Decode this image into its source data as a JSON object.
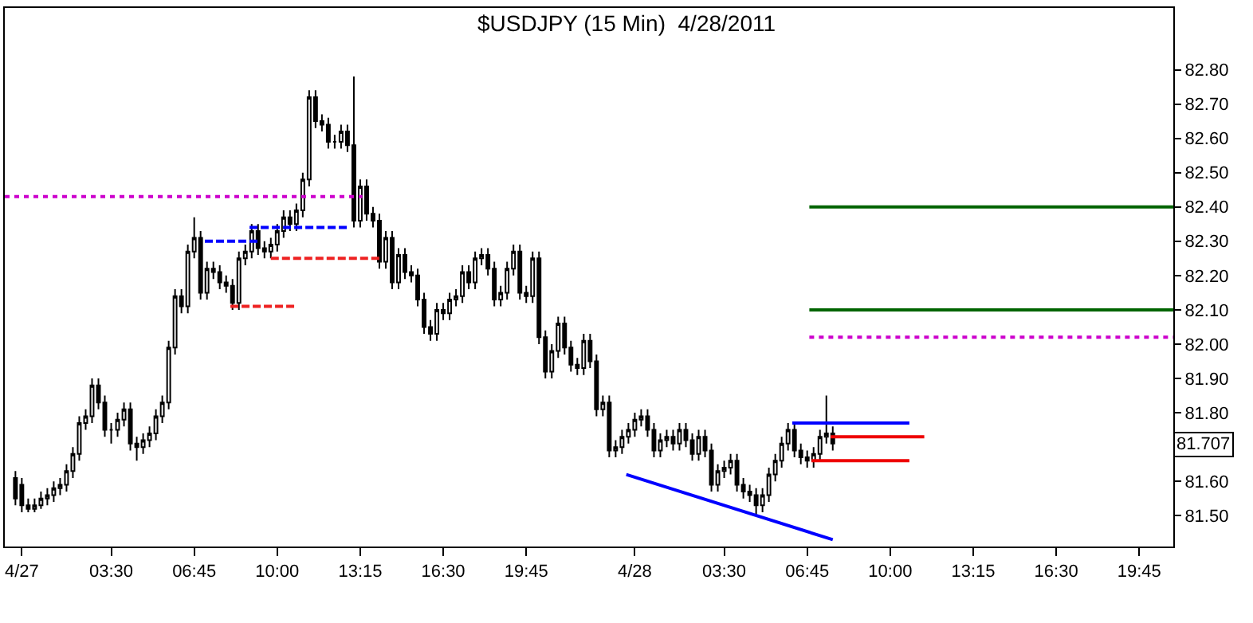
{
  "chart_data": {
    "type": "candlestick",
    "title": "$USDJPY (15 Min)  4/28/2011",
    "x": [
      "2011-04-26T23:45",
      "2011-04-27T00:00",
      "2011-04-27T00:15",
      "2011-04-27T00:30",
      "2011-04-27T00:45",
      "2011-04-27T01:00",
      "2011-04-27T01:15",
      "2011-04-27T01:30",
      "2011-04-27T01:45",
      "2011-04-27T02:00",
      "2011-04-27T02:15",
      "2011-04-27T02:30",
      "2011-04-27T02:45",
      "2011-04-27T03:00",
      "2011-04-27T03:15",
      "2011-04-27T03:30",
      "2011-04-27T03:45",
      "2011-04-27T04:00",
      "2011-04-27T04:15",
      "2011-04-27T04:30",
      "2011-04-27T04:45",
      "2011-04-27T05:00",
      "2011-04-27T05:15",
      "2011-04-27T05:30",
      "2011-04-27T05:45",
      "2011-04-27T06:00",
      "2011-04-27T06:15",
      "2011-04-27T06:30",
      "2011-04-27T06:45",
      "2011-04-27T07:00",
      "2011-04-27T07:15",
      "2011-04-27T07:30",
      "2011-04-27T07:45",
      "2011-04-27T08:00",
      "2011-04-27T08:15",
      "2011-04-27T08:30",
      "2011-04-27T08:45",
      "2011-04-27T09:00",
      "2011-04-27T09:15",
      "2011-04-27T09:30",
      "2011-04-27T09:45",
      "2011-04-27T10:00",
      "2011-04-27T10:15",
      "2011-04-27T10:30",
      "2011-04-27T10:45",
      "2011-04-27T11:00",
      "2011-04-27T11:15",
      "2011-04-27T11:30",
      "2011-04-27T11:45",
      "2011-04-27T12:00",
      "2011-04-27T12:15",
      "2011-04-27T12:30",
      "2011-04-27T12:45",
      "2011-04-27T13:00",
      "2011-04-27T13:15",
      "2011-04-27T13:30",
      "2011-04-27T13:45",
      "2011-04-27T14:00",
      "2011-04-27T14:15",
      "2011-04-27T14:30",
      "2011-04-27T14:45",
      "2011-04-27T15:00",
      "2011-04-27T15:15",
      "2011-04-27T15:30",
      "2011-04-27T15:45",
      "2011-04-27T16:00",
      "2011-04-27T16:15",
      "2011-04-27T16:30",
      "2011-04-27T16:45",
      "2011-04-27T17:00",
      "2011-04-27T17:15",
      "2011-04-27T17:30",
      "2011-04-27T17:45",
      "2011-04-27T18:00",
      "2011-04-27T18:15",
      "2011-04-27T18:30",
      "2011-04-27T18:45",
      "2011-04-27T19:00",
      "2011-04-27T19:15",
      "2011-04-27T19:30",
      "2011-04-27T19:45",
      "2011-04-27T20:00",
      "2011-04-27T20:15",
      "2011-04-27T20:30",
      "2011-04-27T20:45",
      "2011-04-27T21:00",
      "2011-04-27T21:15",
      "2011-04-27T21:30",
      "2011-04-27T21:45",
      "2011-04-27T22:00",
      "2011-04-27T22:15",
      "2011-04-27T22:30",
      "2011-04-27T22:45",
      "2011-04-27T23:00",
      "2011-04-27T23:15",
      "2011-04-27T23:30",
      "2011-04-27T23:45",
      "2011-04-28T00:00",
      "2011-04-28T00:15",
      "2011-04-28T00:30",
      "2011-04-28T00:45",
      "2011-04-28T01:00",
      "2011-04-28T01:15",
      "2011-04-28T01:30",
      "2011-04-28T01:45",
      "2011-04-28T02:00",
      "2011-04-28T02:15",
      "2011-04-28T02:30",
      "2011-04-28T02:45",
      "2011-04-28T03:00",
      "2011-04-28T03:15",
      "2011-04-28T03:30",
      "2011-04-28T03:45",
      "2011-04-28T04:00",
      "2011-04-28T04:15",
      "2011-04-28T04:30",
      "2011-04-28T04:45",
      "2011-04-28T05:00",
      "2011-04-28T05:15",
      "2011-04-28T05:30",
      "2011-04-28T05:45",
      "2011-04-28T06:00",
      "2011-04-28T06:15",
      "2011-04-28T06:30",
      "2011-04-28T06:45",
      "2011-04-28T07:00",
      "2011-04-28T07:15",
      "2011-04-28T07:30",
      "2011-04-28T07:45"
    ],
    "ohlc": [
      [
        81.61,
        81.63,
        81.53,
        81.55
      ],
      [
        81.59,
        81.61,
        81.51,
        81.53
      ],
      [
        81.53,
        81.55,
        81.51,
        81.52
      ],
      [
        81.52,
        81.55,
        81.51,
        81.53
      ],
      [
        81.53,
        81.57,
        81.52,
        81.55
      ],
      [
        81.55,
        81.58,
        81.53,
        81.56
      ],
      [
        81.56,
        81.6,
        81.54,
        81.58
      ],
      [
        81.58,
        81.61,
        81.56,
        81.59
      ],
      [
        81.59,
        81.65,
        81.57,
        81.63
      ],
      [
        81.63,
        81.7,
        81.61,
        81.68
      ],
      [
        81.68,
        81.79,
        81.66,
        81.77
      ],
      [
        81.77,
        81.81,
        81.75,
        81.79
      ],
      [
        81.79,
        81.9,
        81.77,
        81.88
      ],
      [
        81.88,
        81.9,
        81.81,
        81.83
      ],
      [
        81.83,
        81.85,
        81.73,
        81.75
      ],
      [
        81.75,
        81.77,
        81.71,
        81.75
      ],
      [
        81.75,
        81.8,
        81.73,
        81.78
      ],
      [
        81.78,
        81.83,
        81.76,
        81.81
      ],
      [
        81.81,
        81.83,
        81.69,
        81.71
      ],
      [
        81.71,
        81.73,
        81.66,
        81.7
      ],
      [
        81.7,
        81.74,
        81.68,
        81.72
      ],
      [
        81.72,
        81.76,
        81.7,
        81.74
      ],
      [
        81.74,
        81.81,
        81.72,
        81.79
      ],
      [
        81.79,
        81.85,
        81.77,
        81.83
      ],
      [
        81.83,
        82.01,
        81.81,
        81.99
      ],
      [
        81.99,
        82.16,
        81.97,
        82.14
      ],
      [
        82.14,
        82.16,
        82.09,
        82.11
      ],
      [
        82.11,
        82.29,
        82.09,
        82.27
      ],
      [
        82.27,
        82.37,
        82.25,
        82.31
      ],
      [
        82.31,
        82.33,
        82.13,
        82.15
      ],
      [
        82.15,
        82.24,
        82.13,
        82.22
      ],
      [
        82.22,
        82.24,
        82.19,
        82.21
      ],
      [
        82.21,
        82.23,
        82.16,
        82.18
      ],
      [
        82.18,
        82.2,
        82.15,
        82.17
      ],
      [
        82.17,
        82.19,
        82.1,
        82.12
      ],
      [
        82.12,
        82.27,
        82.1,
        82.25
      ],
      [
        82.25,
        82.29,
        82.23,
        82.27
      ],
      [
        82.27,
        82.35,
        82.25,
        82.33
      ],
      [
        82.33,
        82.35,
        82.26,
        82.28
      ],
      [
        82.28,
        82.3,
        82.25,
        82.27
      ],
      [
        82.27,
        82.31,
        82.25,
        82.29
      ],
      [
        82.29,
        82.35,
        82.27,
        82.33
      ],
      [
        82.33,
        82.39,
        82.31,
        82.37
      ],
      [
        82.37,
        82.39,
        82.33,
        82.35
      ],
      [
        82.35,
        82.41,
        82.33,
        82.39
      ],
      [
        82.39,
        82.5,
        82.37,
        82.48
      ],
      [
        82.48,
        82.74,
        82.46,
        82.72
      ],
      [
        82.72,
        82.74,
        82.63,
        82.65
      ],
      [
        82.65,
        82.67,
        82.62,
        82.64
      ],
      [
        82.64,
        82.66,
        82.57,
        82.59
      ],
      [
        82.59,
        82.61,
        82.57,
        82.59
      ],
      [
        82.59,
        82.64,
        82.57,
        82.62
      ],
      [
        82.62,
        82.64,
        82.56,
        82.58
      ],
      [
        82.58,
        82.78,
        82.34,
        82.36
      ],
      [
        82.36,
        82.48,
        82.34,
        82.46
      ],
      [
        82.46,
        82.48,
        82.36,
        82.38
      ],
      [
        82.38,
        82.4,
        82.34,
        82.36
      ],
      [
        82.36,
        82.38,
        82.22,
        82.24
      ],
      [
        82.24,
        82.33,
        82.22,
        82.31
      ],
      [
        82.31,
        82.33,
        82.16,
        82.18
      ],
      [
        82.18,
        82.28,
        82.16,
        82.26
      ],
      [
        82.26,
        82.28,
        82.19,
        82.21
      ],
      [
        82.21,
        82.23,
        82.18,
        82.2
      ],
      [
        82.2,
        82.22,
        82.11,
        82.13
      ],
      [
        82.13,
        82.15,
        82.03,
        82.05
      ],
      [
        82.05,
        82.07,
        82.01,
        82.03
      ],
      [
        82.03,
        82.12,
        82.01,
        82.1
      ],
      [
        82.1,
        82.12,
        82.07,
        82.09
      ],
      [
        82.09,
        82.15,
        82.07,
        82.13
      ],
      [
        82.13,
        82.16,
        82.11,
        82.14
      ],
      [
        82.14,
        82.23,
        82.12,
        82.21
      ],
      [
        82.21,
        82.23,
        82.16,
        82.18
      ],
      [
        82.18,
        82.27,
        82.16,
        82.25
      ],
      [
        82.25,
        82.28,
        82.23,
        82.26
      ],
      [
        82.26,
        82.28,
        82.2,
        82.22
      ],
      [
        82.22,
        82.24,
        82.11,
        82.13
      ],
      [
        82.13,
        82.17,
        82.11,
        82.15
      ],
      [
        82.15,
        82.24,
        82.13,
        82.22
      ],
      [
        82.22,
        82.29,
        82.2,
        82.27
      ],
      [
        82.27,
        82.29,
        82.13,
        82.15
      ],
      [
        82.15,
        82.17,
        82.12,
        82.14
      ],
      [
        82.14,
        82.27,
        82.12,
        82.25
      ],
      [
        82.25,
        82.27,
        82.0,
        82.02
      ],
      [
        82.02,
        82.04,
        81.9,
        81.92
      ],
      [
        81.92,
        82.0,
        81.9,
        81.98
      ],
      [
        81.98,
        82.08,
        81.96,
        82.06
      ],
      [
        82.06,
        82.08,
        81.97,
        81.99
      ],
      [
        81.99,
        82.01,
        81.92,
        81.94
      ],
      [
        81.94,
        81.96,
        81.91,
        81.93
      ],
      [
        81.93,
        82.03,
        81.91,
        82.01
      ],
      [
        82.01,
        82.03,
        81.93,
        81.95
      ],
      [
        81.95,
        81.97,
        81.79,
        81.81
      ],
      [
        81.81,
        81.85,
        81.79,
        81.83
      ],
      [
        81.83,
        81.85,
        81.67,
        81.69
      ],
      [
        81.69,
        81.72,
        81.67,
        81.7
      ],
      [
        81.7,
        81.75,
        81.68,
        81.73
      ],
      [
        81.73,
        81.77,
        81.71,
        81.75
      ],
      [
        81.75,
        81.8,
        81.73,
        81.78
      ],
      [
        81.78,
        81.81,
        81.76,
        81.79
      ],
      [
        81.79,
        81.81,
        81.73,
        81.75
      ],
      [
        81.75,
        81.77,
        81.67,
        81.69
      ],
      [
        81.69,
        81.74,
        81.67,
        81.72
      ],
      [
        81.72,
        81.75,
        81.7,
        81.73
      ],
      [
        81.73,
        81.75,
        81.69,
        81.71
      ],
      [
        81.71,
        81.77,
        81.69,
        81.75
      ],
      [
        81.75,
        81.77,
        81.7,
        81.72
      ],
      [
        81.72,
        81.74,
        81.66,
        81.68
      ],
      [
        81.68,
        81.75,
        81.66,
        81.73
      ],
      [
        81.73,
        81.75,
        81.67,
        81.69
      ],
      [
        81.69,
        81.71,
        81.57,
        81.59
      ],
      [
        81.59,
        81.65,
        81.57,
        81.63
      ],
      [
        81.63,
        81.66,
        81.61,
        81.64
      ],
      [
        81.64,
        81.68,
        81.62,
        81.66
      ],
      [
        81.66,
        81.68,
        81.57,
        81.59
      ],
      [
        81.59,
        81.61,
        81.55,
        81.57
      ],
      [
        81.57,
        81.59,
        81.54,
        81.56
      ],
      [
        81.56,
        81.58,
        81.5,
        81.53
      ],
      [
        81.53,
        81.58,
        81.51,
        81.56
      ],
      [
        81.56,
        81.64,
        81.54,
        81.62
      ],
      [
        81.62,
        81.68,
        81.6,
        81.66
      ],
      [
        81.66,
        81.73,
        81.64,
        81.71
      ],
      [
        81.71,
        81.77,
        81.69,
        81.75
      ],
      [
        81.75,
        81.77,
        81.67,
        81.69
      ],
      [
        81.69,
        81.71,
        81.65,
        81.67
      ],
      [
        81.67,
        81.69,
        81.64,
        81.66
      ],
      [
        81.66,
        81.7,
        81.64,
        81.68
      ],
      [
        81.68,
        81.75,
        81.66,
        81.73
      ],
      [
        81.73,
        81.85,
        81.71,
        81.74
      ],
      [
        81.74,
        81.76,
        81.69,
        81.71
      ]
    ],
    "series": [
      {
        "type": "line",
        "x": [
          "2011-04-26T23:20",
          "2011-04-27T13:20"
        ],
        "values": [
          82.43,
          82.43
        ],
        "color": "#cc00cc",
        "line_style": "dotted"
      },
      {
        "type": "line",
        "x": [
          "2011-04-27T07:10",
          "2011-04-27T09:15"
        ],
        "values": [
          82.3,
          82.3
        ],
        "color": "#0000ff",
        "line_style": "dashed"
      },
      {
        "type": "line",
        "x": [
          "2011-04-27T08:55",
          "2011-04-27T12:45"
        ],
        "values": [
          82.34,
          82.34
        ],
        "color": "#0000ff",
        "line_style": "dashed"
      },
      {
        "type": "line",
        "x": [
          "2011-04-27T08:10",
          "2011-04-27T10:40"
        ],
        "values": [
          82.11,
          82.11
        ],
        "color": "#ee2222",
        "line_style": "dashed"
      },
      {
        "type": "line",
        "x": [
          "2011-04-27T09:45",
          "2011-04-27T14:00"
        ],
        "values": [
          82.25,
          82.25
        ],
        "color": "#ee2222",
        "line_style": "dashed"
      },
      {
        "type": "line",
        "x": [
          "2011-04-28T06:10",
          "2011-04-28T10:45"
        ],
        "values": [
          81.77,
          81.77
        ],
        "color": "#0000ff",
        "line_style": "solid"
      },
      {
        "type": "line",
        "x": [
          "2011-04-28T07:40",
          "2011-04-28T11:20"
        ],
        "values": [
          81.73,
          81.73
        ],
        "color": "#ee0000",
        "line_style": "solid"
      },
      {
        "type": "line",
        "x": [
          "2011-04-28T06:55",
          "2011-04-28T10:45"
        ],
        "values": [
          81.66,
          81.66
        ],
        "color": "#ee0000",
        "line_style": "solid"
      },
      {
        "type": "line",
        "x": [
          "2011-04-28T06:50",
          "2011-04-28T21:05"
        ],
        "values": [
          82.4,
          82.4
        ],
        "color": "#006400",
        "line_style": "solid"
      },
      {
        "type": "line",
        "x": [
          "2011-04-28T06:50",
          "2011-04-28T21:05"
        ],
        "values": [
          82.1,
          82.1
        ],
        "color": "#006400",
        "line_style": "solid"
      },
      {
        "type": "line",
        "x": [
          "2011-04-28T06:50",
          "2011-04-28T21:05"
        ],
        "values": [
          82.02,
          82.02
        ],
        "color": "#cc00cc",
        "line_style": "dotted"
      },
      {
        "type": "line",
        "x": [
          "2011-04-27T23:40",
          "2011-04-28T07:45"
        ],
        "values": [
          81.62,
          81.43
        ],
        "color": "#0000ff",
        "line_style": "solid"
      }
    ],
    "annotations": [
      {
        "text": "81.707",
        "y": 81.707
      }
    ],
    "xlim": [
      "2011-04-26T23:20",
      "2011-04-28T21:05"
    ],
    "xticks": [
      {
        "value": "2011-04-27T00:00",
        "label": "4/27"
      },
      {
        "value": "2011-04-27T03:30",
        "label": "03:30"
      },
      {
        "value": "2011-04-27T06:45",
        "label": "06:45"
      },
      {
        "value": "2011-04-27T10:00",
        "label": "10:00"
      },
      {
        "value": "2011-04-27T13:15",
        "label": "13:15"
      },
      {
        "value": "2011-04-27T16:30",
        "label": "16:30"
      },
      {
        "value": "2011-04-27T19:45",
        "label": "19:45"
      },
      {
        "value": "2011-04-28T00:00",
        "label": "4/28"
      },
      {
        "value": "2011-04-28T03:30",
        "label": "03:30"
      },
      {
        "value": "2011-04-28T06:45",
        "label": "06:45"
      },
      {
        "value": "2011-04-28T10:00",
        "label": "10:00"
      },
      {
        "value": "2011-04-28T13:15",
        "label": "13:15"
      },
      {
        "value": "2011-04-28T16:30",
        "label": "16:30"
      },
      {
        "value": "2011-04-28T19:45",
        "label": "19:45"
      }
    ],
    "ylim": [
      81.41,
      82.98
    ],
    "yticks": [
      {
        "value": 81.5,
        "label": "81.50"
      },
      {
        "value": 81.6,
        "label": "81.60"
      },
      {
        "value": 81.8,
        "label": "81.80"
      },
      {
        "value": 81.9,
        "label": "81.90"
      },
      {
        "value": 82.0,
        "label": "82.00"
      },
      {
        "value": 82.1,
        "label": "82.10"
      },
      {
        "value": 82.2,
        "label": "82.20"
      },
      {
        "value": 82.3,
        "label": "82.30"
      },
      {
        "value": 82.4,
        "label": "82.40"
      },
      {
        "value": 82.5,
        "label": "82.50"
      },
      {
        "value": 82.6,
        "label": "82.60"
      },
      {
        "value": 82.7,
        "label": "82.70"
      },
      {
        "value": 82.8,
        "label": "82.80"
      }
    ],
    "ylabel": null
  }
}
